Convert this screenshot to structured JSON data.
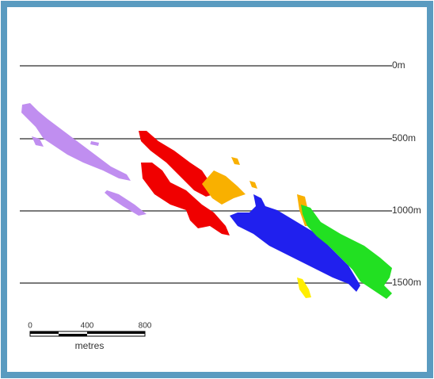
{
  "depth_labels": [
    "0m",
    "500m",
    "1000m",
    "1500m"
  ],
  "scale_bar": {
    "ticks": [
      "0",
      "400",
      "800"
    ],
    "unit": "metres"
  }
}
